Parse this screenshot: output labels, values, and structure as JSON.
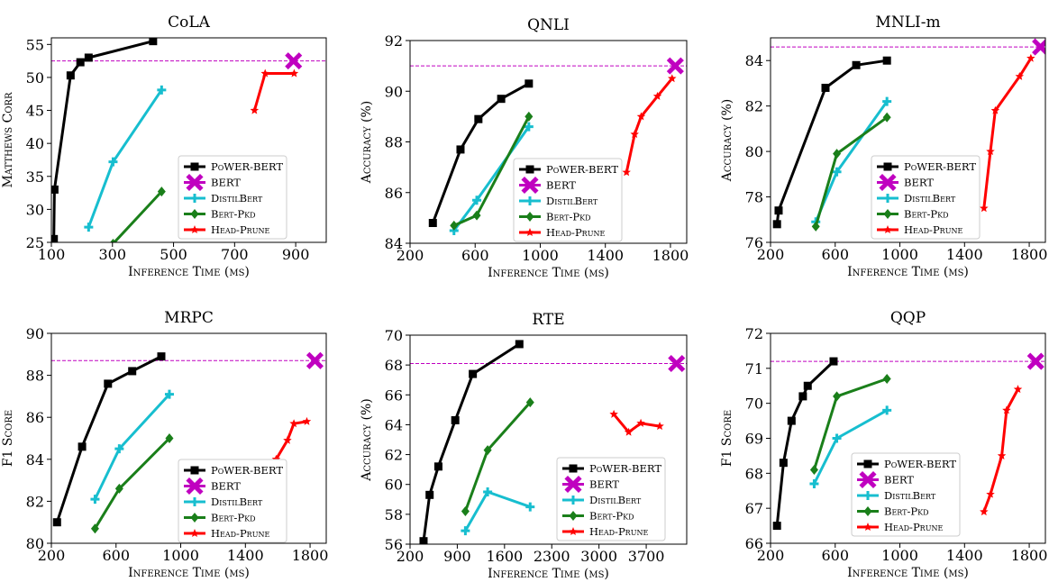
{
  "colors": {
    "PoWER-BERT": "#000000",
    "BERT": "#c000c0",
    "DistilBert": "#17becf",
    "Bert-Pkd": "#1a7f1a",
    "Head-Prune": "#ff0000"
  },
  "chart_data": [
    {
      "type": "line",
      "title": "CoLA",
      "xlabel": "Inference Time (ms)",
      "ylabel": "Matthews Corr",
      "xlim": [
        100,
        1000
      ],
      "ylim": [
        25,
        56
      ],
      "xticks": [
        100,
        300,
        500,
        700,
        900
      ],
      "yticks": [
        25,
        30,
        35,
        40,
        45,
        50,
        55
      ],
      "reference_y": 52.5,
      "series": [
        {
          "name": "PoWER-BERT",
          "x": [
            108,
            110,
            163,
            195,
            222,
            433
          ],
          "y": [
            25.5,
            33,
            50.3,
            52.3,
            53,
            55.5
          ]
        },
        {
          "name": "BERT",
          "x": [
            893
          ],
          "y": [
            52.5
          ]
        },
        {
          "name": "DistilBert",
          "x": [
            222,
            302,
            461
          ],
          "y": [
            27.3,
            37.2,
            48.1
          ]
        },
        {
          "name": "Bert-Pkd",
          "x": [
            302,
            461
          ],
          "y": [
            24.8,
            32.7
          ]
        },
        {
          "name": "Head-Prune",
          "x": [
            765,
            800,
            895
          ],
          "y": [
            45,
            50.6,
            50.6
          ]
        }
      ],
      "legend_position": "lower right"
    },
    {
      "type": "line",
      "title": "QNLI",
      "xlabel": "Inference Time (ms)",
      "ylabel": "Accuracy (%)",
      "xlim": [
        200,
        1900
      ],
      "ylim": [
        84,
        92
      ],
      "xticks": [
        200,
        600,
        1000,
        1400,
        1800
      ],
      "yticks": [
        84,
        86,
        88,
        90,
        92
      ],
      "reference_y": 91,
      "series": [
        {
          "name": "PoWER-BERT",
          "x": [
            340,
            510,
            620,
            760,
            930
          ],
          "y": [
            84.8,
            87.7,
            88.9,
            89.7,
            90.3
          ]
        },
        {
          "name": "BERT",
          "x": [
            1830
          ],
          "y": [
            91
          ]
        },
        {
          "name": "DistilBert",
          "x": [
            470,
            610,
            930
          ],
          "y": [
            84.5,
            85.7,
            88.6
          ]
        },
        {
          "name": "Bert-Pkd",
          "x": [
            470,
            610,
            930
          ],
          "y": [
            84.7,
            85.1,
            89
          ]
        },
        {
          "name": "Head-Prune",
          "x": [
            1530,
            1580,
            1620,
            1720,
            1810
          ],
          "y": [
            86.8,
            88.3,
            89,
            89.8,
            90.5
          ]
        }
      ],
      "legend_position": "lower right"
    },
    {
      "type": "line",
      "title": "MNLI-m",
      "xlabel": "Inference Time (ms)",
      "ylabel": "Accuracy (%)",
      "xlim": [
        200,
        1900
      ],
      "ylim": [
        76,
        85
      ],
      "xticks": [
        200,
        600,
        1000,
        1400,
        1800
      ],
      "yticks": [
        76,
        78,
        80,
        82,
        84
      ],
      "reference_y": 84.6,
      "series": [
        {
          "name": "PoWER-BERT",
          "x": [
            240,
            250,
            540,
            730,
            920
          ],
          "y": [
            76.8,
            77.4,
            82.8,
            83.8,
            84
          ]
        },
        {
          "name": "BERT",
          "x": [
            1870
          ],
          "y": [
            84.6
          ]
        },
        {
          "name": "DistilBert",
          "x": [
            480,
            610,
            920
          ],
          "y": [
            76.9,
            79.1,
            82.2
          ]
        },
        {
          "name": "Bert-Pkd",
          "x": [
            480,
            610,
            920
          ],
          "y": [
            76.7,
            79.9,
            81.5
          ]
        },
        {
          "name": "Head-Prune",
          "x": [
            1520,
            1560,
            1590,
            1740,
            1810
          ],
          "y": [
            77.5,
            80,
            81.8,
            83.3,
            84.1
          ]
        }
      ],
      "legend_position": "lower right"
    },
    {
      "type": "line",
      "title": "MRPC",
      "xlabel": "Inference Time (ms)",
      "ylabel": "F1 Score",
      "xlim": [
        200,
        1900
      ],
      "ylim": [
        80,
        90
      ],
      "xticks": [
        200,
        600,
        1000,
        1400,
        1800
      ],
      "yticks": [
        80,
        82,
        84,
        86,
        88,
        90
      ],
      "reference_y": 88.7,
      "series": [
        {
          "name": "PoWER-BERT",
          "x": [
            235,
            390,
            550,
            700,
            880
          ],
          "y": [
            81,
            84.6,
            87.6,
            88.2,
            88.9
          ]
        },
        {
          "name": "BERT",
          "x": [
            1830
          ],
          "y": [
            88.7
          ]
        },
        {
          "name": "DistilBert",
          "x": [
            470,
            620,
            930
          ],
          "y": [
            82.1,
            84.5,
            87.1
          ]
        },
        {
          "name": "Bert-Pkd",
          "x": [
            470,
            620,
            930
          ],
          "y": [
            80.7,
            82.6,
            85
          ]
        },
        {
          "name": "Head-Prune",
          "x": [
            1530,
            1590,
            1660,
            1700,
            1780
          ],
          "y": [
            83.6,
            84,
            84.9,
            85.7,
            85.8
          ]
        }
      ],
      "legend_position": "lower right"
    },
    {
      "type": "line",
      "title": "RTE",
      "xlabel": "Inference Time (ms)",
      "ylabel": "Accuracy (%)",
      "xlim": [
        200,
        4300
      ],
      "ylim": [
        56,
        70
      ],
      "xticks": [
        200,
        900,
        1600,
        2300,
        3000,
        3700
      ],
      "yticks": [
        56,
        58,
        60,
        62,
        64,
        66,
        68,
        70
      ],
      "reference_y": 68.1,
      "series": [
        {
          "name": "PoWER-BERT",
          "x": [
            400,
            490,
            620,
            870,
            1130,
            1820
          ],
          "y": [
            56.2,
            59.3,
            61.2,
            64.3,
            67.4,
            69.4
          ]
        },
        {
          "name": "BERT",
          "x": [
            4150
          ],
          "y": [
            68.1
          ]
        },
        {
          "name": "DistilBert",
          "x": [
            1020,
            1350,
            1980
          ],
          "y": [
            56.9,
            59.5,
            58.5
          ]
        },
        {
          "name": "Bert-Pkd",
          "x": [
            1020,
            1350,
            1980
          ],
          "y": [
            58.2,
            62.3,
            65.5
          ]
        },
        {
          "name": "Head-Prune",
          "x": [
            3220,
            3440,
            3620,
            3900
          ],
          "y": [
            64.7,
            63.5,
            64.1,
            63.9
          ]
        }
      ],
      "legend_position": "lower right"
    },
    {
      "type": "line",
      "title": "QQP",
      "xlabel": "Inference Time (ms)",
      "ylabel": "F1 Score",
      "xlim": [
        200,
        1900
      ],
      "ylim": [
        66,
        72
      ],
      "xticks": [
        200,
        600,
        1000,
        1400,
        1800
      ],
      "yticks": [
        66,
        67,
        68,
        69,
        70,
        71,
        72
      ],
      "reference_y": 71.2,
      "series": [
        {
          "name": "PoWER-BERT",
          "x": [
            240,
            280,
            330,
            400,
            430,
            590
          ],
          "y": [
            66.5,
            68.3,
            69.5,
            70.2,
            70.5,
            71.2
          ]
        },
        {
          "name": "BERT",
          "x": [
            1840
          ],
          "y": [
            71.2
          ]
        },
        {
          "name": "DistilBert",
          "x": [
            470,
            610,
            920
          ],
          "y": [
            67.7,
            69,
            69.8
          ]
        },
        {
          "name": "Bert-Pkd",
          "x": [
            470,
            610,
            920
          ],
          "y": [
            68.1,
            70.2,
            70.7
          ]
        },
        {
          "name": "Head-Prune",
          "x": [
            1520,
            1560,
            1630,
            1660,
            1730
          ],
          "y": [
            66.9,
            67.4,
            68.5,
            69.8,
            70.4
          ]
        }
      ],
      "legend_position": "lower right"
    }
  ]
}
